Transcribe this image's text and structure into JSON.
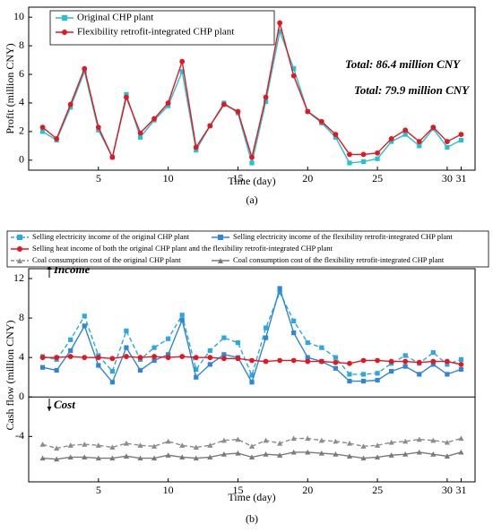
{
  "chart_data": [
    {
      "type": "line",
      "caption": "(a)",
      "xlabel": "Time (day)",
      "ylabel": "Profit (million CNY)",
      "x": [
        1,
        2,
        3,
        4,
        5,
        6,
        7,
        8,
        9,
        10,
        11,
        12,
        13,
        14,
        15,
        16,
        17,
        18,
        19,
        20,
        21,
        22,
        23,
        24,
        25,
        26,
        27,
        28,
        29,
        30,
        31
      ],
      "xlim": [
        0,
        32
      ],
      "xticks": [
        5,
        10,
        15,
        20,
        25,
        30,
        31
      ],
      "ylim": [
        -0.7,
        10.7
      ],
      "yticks": [
        0,
        2,
        4,
        6,
        8,
        10
      ],
      "legend": "upper left",
      "series": [
        {
          "name": "Original CHP plant",
          "color": "#1fc4d4",
          "marker": "square",
          "dash": false,
          "values": [
            2.0,
            1.4,
            3.7,
            6.2,
            2.1,
            0.2,
            4.6,
            1.6,
            2.8,
            3.8,
            6.2,
            0.7,
            2.4,
            4.0,
            3.3,
            -0.2,
            4.1,
            9.0,
            6.4,
            3.4,
            2.6,
            1.6,
            -0.2,
            -0.1,
            0.1,
            1.3,
            1.8,
            1.0,
            2.2,
            0.9,
            1.4
          ]
        },
        {
          "name": "Flexibility retrofit-integrated CHP plant",
          "color": "#e8141e",
          "marker": "circle",
          "dash": false,
          "values": [
            2.3,
            1.5,
            3.9,
            6.4,
            2.3,
            0.2,
            4.4,
            1.9,
            2.9,
            4.0,
            6.9,
            0.9,
            2.4,
            3.9,
            3.4,
            0.2,
            4.4,
            9.6,
            5.9,
            3.4,
            2.7,
            1.8,
            0.4,
            0.4,
            0.5,
            1.5,
            2.1,
            1.3,
            2.3,
            1.3,
            1.8
          ]
        }
      ],
      "annotations": [
        {
          "text": "Total: 86.4 million CNY",
          "color": "#e8141e"
        },
        {
          "text": "Total: 79.9 million CNY",
          "color": "#1fc4d4"
        }
      ]
    },
    {
      "type": "line",
      "caption": "(b)",
      "xlabel": "Time (day)",
      "ylabel": "Cash flow (million CNY)",
      "x": [
        1,
        2,
        3,
        4,
        5,
        6,
        7,
        8,
        9,
        10,
        11,
        12,
        13,
        14,
        15,
        16,
        17,
        18,
        19,
        20,
        21,
        22,
        23,
        24,
        25,
        26,
        27,
        28,
        29,
        30,
        31
      ],
      "xlim": [
        0,
        32
      ],
      "xticks": [
        5,
        10,
        15,
        20,
        25,
        30,
        31
      ],
      "ylim": [
        -8.6,
        13.0
      ],
      "yticks": [
        -4,
        0,
        4,
        8,
        12
      ],
      "legend": "top outside",
      "series": [
        {
          "name": "Selling electricity income of the original CHP plant",
          "color": "#29a8e2",
          "marker": "square",
          "dash": true,
          "values": [
            4.1,
            3.8,
            5.8,
            8.2,
            4.2,
            2.6,
            6.7,
            3.8,
            5.0,
            5.9,
            8.3,
            2.8,
            4.7,
            6.0,
            5.5,
            2.2,
            7.0,
            10.6,
            7.7,
            5.5,
            5.0,
            4.0,
            2.3,
            2.3,
            2.4,
            3.4,
            4.2,
            3.4,
            4.5,
            3.3,
            3.8
          ]
        },
        {
          "name": "Selling electricity income of the flexibility retrofit-integrated CHP plant",
          "color": "#2e86d6",
          "marker": "square",
          "dash": false,
          "values": [
            3.0,
            2.7,
            4.7,
            7.2,
            3.2,
            1.5,
            5.0,
            2.7,
            3.7,
            4.3,
            7.8,
            2.0,
            3.3,
            4.3,
            4.0,
            1.5,
            6.0,
            11.0,
            6.5,
            4.0,
            3.6,
            2.9,
            1.6,
            1.6,
            1.7,
            2.6,
            3.1,
            2.3,
            3.3,
            2.3,
            2.8
          ]
        },
        {
          "name": "Selling heat income of both the original CHP plant and the flexibility retrofit-integrated CHP plant",
          "color": "#e8141e",
          "marker": "circle",
          "dash": false,
          "values": [
            4.0,
            4.0,
            4.1,
            4.0,
            4.0,
            3.9,
            4.1,
            4.0,
            4.1,
            4.0,
            4.1,
            4.0,
            4.0,
            3.9,
            3.9,
            3.7,
            3.6,
            3.7,
            3.7,
            3.6,
            3.6,
            3.5,
            3.4,
            3.7,
            3.7,
            3.6,
            3.6,
            3.5,
            3.6,
            3.6,
            3.3
          ]
        },
        {
          "name": "Coal consumption cost of the original CHP plant",
          "color": "#8c8c8c",
          "marker": "triangle",
          "dash": true,
          "values": [
            -4.8,
            -5.2,
            -4.9,
            -4.8,
            -4.9,
            -5.1,
            -4.7,
            -4.9,
            -5.0,
            -4.5,
            -4.9,
            -5.1,
            -4.9,
            -4.4,
            -4.3,
            -5.0,
            -4.4,
            -4.7,
            -4.2,
            -4.2,
            -4.4,
            -4.5,
            -4.7,
            -5.0,
            -4.9,
            -4.6,
            -4.5,
            -4.3,
            -4.4,
            -4.6,
            -4.2
          ]
        },
        {
          "name": "Coal consumption cost of the flexibility retrofit-integrated CHP plant",
          "color": "#7a7a7a",
          "marker": "triangle",
          "dash": false,
          "values": [
            -6.2,
            -6.3,
            -6.1,
            -6.1,
            -6.2,
            -6.2,
            -6.0,
            -6.2,
            -6.2,
            -5.9,
            -6.1,
            -6.2,
            -6.1,
            -5.8,
            -5.7,
            -6.1,
            -5.8,
            -5.9,
            -5.6,
            -5.6,
            -5.7,
            -5.8,
            -6.0,
            -6.2,
            -6.1,
            -5.9,
            -5.8,
            -5.6,
            -5.8,
            -6.0,
            -5.6
          ]
        }
      ],
      "annotations": [
        {
          "text": "Income",
          "color": "#000000"
        },
        {
          "text": "Cost",
          "color": "#000000"
        }
      ]
    }
  ]
}
